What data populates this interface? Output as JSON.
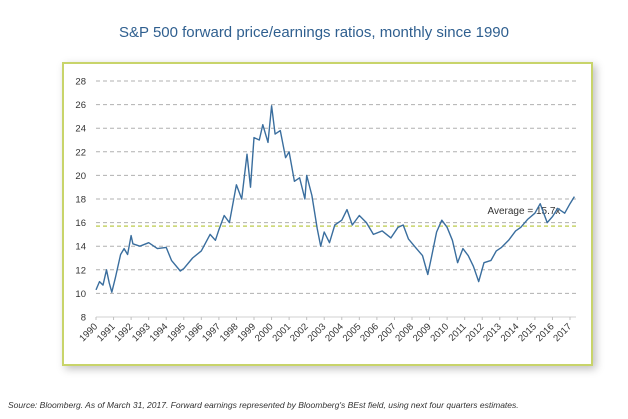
{
  "chart_data": {
    "type": "line",
    "title": "S&P 500 forward price/earnings ratios, monthly since 1990",
    "xlabel": "",
    "ylabel": "",
    "ylim": [
      8,
      28
    ],
    "xlim": [
      1990,
      2017.25
    ],
    "y_ticks": [
      "8",
      "10",
      "12",
      "14",
      "16",
      "18",
      "20",
      "22",
      "24",
      "26",
      "28"
    ],
    "x_ticks": [
      "1990",
      "1991",
      "1992",
      "1993",
      "1994",
      "1995",
      "1996",
      "1997",
      "1998",
      "1999",
      "2000",
      "2001",
      "2002",
      "2003",
      "2004",
      "2005",
      "2006",
      "2007",
      "2008",
      "2009",
      "2010",
      "2011",
      "2012",
      "2013",
      "2014",
      "2015",
      "2016",
      "2017"
    ],
    "grid": true,
    "series": [
      {
        "name": "S&P 500 forward P/E",
        "color": "#3a6e9e",
        "x": [
          1990.0,
          1990.2,
          1990.4,
          1990.6,
          1990.75,
          1990.9,
          1991.1,
          1991.4,
          1991.6,
          1991.8,
          1992.0,
          1992.1,
          1992.5,
          1993.0,
          1993.5,
          1994.0,
          1994.3,
          1994.8,
          1995.0,
          1995.5,
          1996.0,
          1996.5,
          1996.8,
          1997.0,
          1997.3,
          1997.6,
          1997.8,
          1998.0,
          1998.3,
          1998.6,
          1998.8,
          1999.0,
          1999.3,
          1999.5,
          1999.8,
          2000.0,
          2000.2,
          2000.5,
          2000.8,
          2001.0,
          2001.3,
          2001.6,
          2001.9,
          2002.0,
          2002.3,
          2002.6,
          2002.8,
          2003.0,
          2003.3,
          2003.6,
          2004.0,
          2004.3,
          2004.6,
          2005.0,
          2005.4,
          2005.8,
          2006.3,
          2006.8,
          2007.2,
          2007.5,
          2007.8,
          2008.2,
          2008.6,
          2008.9,
          2009.1,
          2009.4,
          2009.7,
          2010.0,
          2010.3,
          2010.6,
          2010.9,
          2011.2,
          2011.5,
          2011.8,
          2012.1,
          2012.5,
          2012.8,
          2013.1,
          2013.5,
          2013.9,
          2014.2,
          2014.6,
          2015.0,
          2015.3,
          2015.7,
          2016.0,
          2016.3,
          2016.7,
          2017.0,
          2017.25
        ],
        "values": [
          10.3,
          11.0,
          10.7,
          12.0,
          10.9,
          10.1,
          11.3,
          13.3,
          13.8,
          13.3,
          14.9,
          14.2,
          14.0,
          14.3,
          13.8,
          13.9,
          12.8,
          11.9,
          12.1,
          13.0,
          13.6,
          15.0,
          14.5,
          15.4,
          16.6,
          16.0,
          17.6,
          19.2,
          18.0,
          21.8,
          19.0,
          23.2,
          23.0,
          24.3,
          22.8,
          25.9,
          23.5,
          23.8,
          21.5,
          22.0,
          19.5,
          19.8,
          18.0,
          20.0,
          18.3,
          15.5,
          14.0,
          15.2,
          14.3,
          15.8,
          16.2,
          17.1,
          15.8,
          16.6,
          16.0,
          15.0,
          15.3,
          14.7,
          15.6,
          15.8,
          14.6,
          13.9,
          13.2,
          11.6,
          13.0,
          15.2,
          16.2,
          15.6,
          14.5,
          12.6,
          13.8,
          13.2,
          12.3,
          11.0,
          12.6,
          12.8,
          13.6,
          13.9,
          14.5,
          15.3,
          15.6,
          16.3,
          16.8,
          17.6,
          16.0,
          16.5,
          17.2,
          16.8,
          17.6,
          18.2
        ]
      }
    ],
    "reference_lines": [
      {
        "name": "Average",
        "value": 15.7,
        "color": "#c8d46a",
        "label": "Average = 15.7x"
      }
    ]
  },
  "source_note": "Source: Bloomberg. As of March 31, 2017. Forward earnings represented by Bloomberg's BEst field, using next four quarters estimates."
}
